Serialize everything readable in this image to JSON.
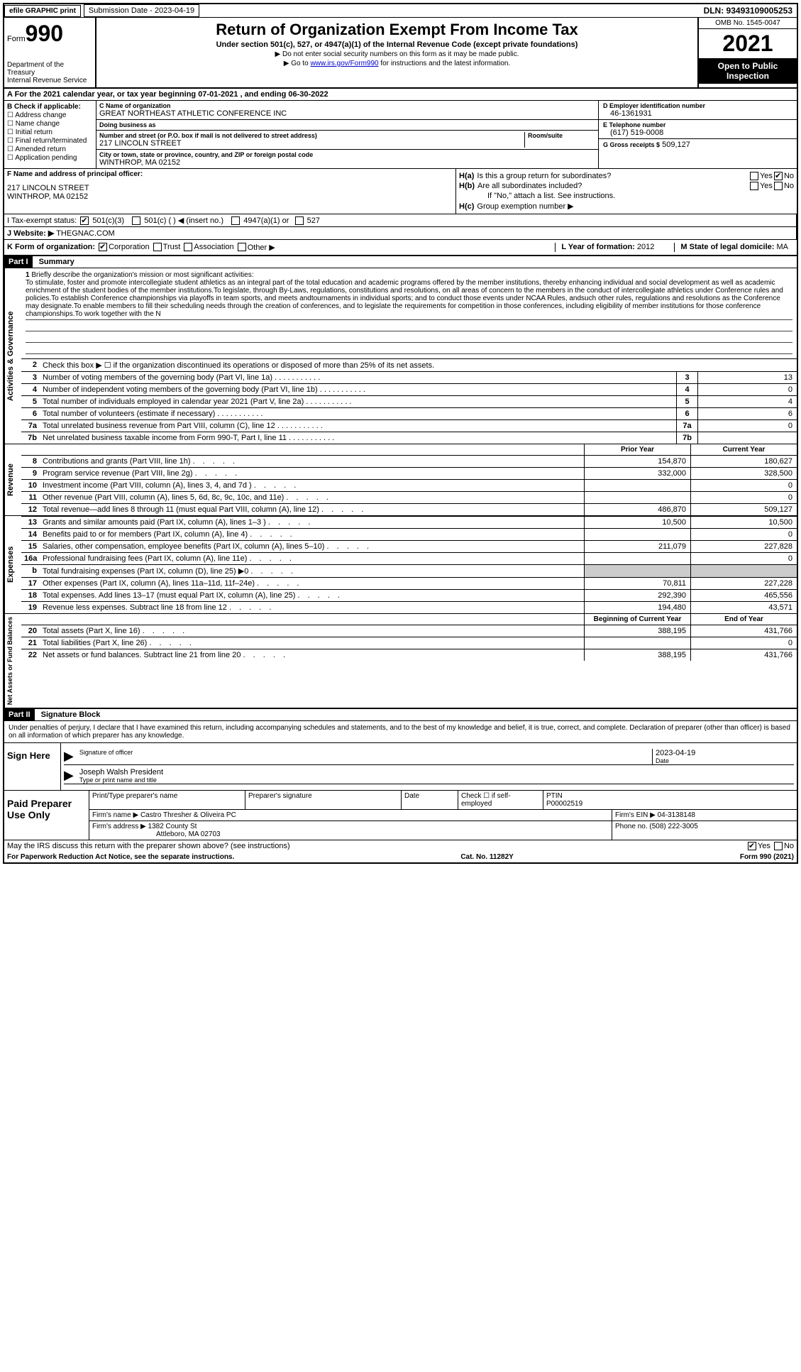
{
  "top": {
    "efile": "efile GRAPHIC print",
    "sub_date_label": "Submission Date - ",
    "sub_date": "2023-04-19",
    "dln": "DLN: 93493109005253"
  },
  "header": {
    "form_word": "Form",
    "form_num": "990",
    "dept": "Department of the Treasury\nInternal Revenue Service",
    "title": "Return of Organization Exempt From Income Tax",
    "subtitle": "Under section 501(c), 527, or 4947(a)(1) of the Internal Revenue Code (except private foundations)",
    "line1": "▶ Do not enter social security numbers on this form as it may be made public.",
    "line2_pre": "▶ Go to ",
    "line2_link": "www.irs.gov/Form990",
    "line2_post": " for instructions and the latest information.",
    "omb": "OMB No. 1545-0047",
    "year": "2021",
    "open": "Open to Public Inspection"
  },
  "rowA": "A For the 2021 calendar year, or tax year beginning 07-01-2021   , and ending 06-30-2022",
  "B": {
    "hdr": "B Check if applicable:",
    "items": [
      "Address change",
      "Name change",
      "Initial return",
      "Final return/terminated",
      "Amended return",
      "Application pending"
    ]
  },
  "C": {
    "name_lbl": "C Name of organization",
    "name": "GREAT NORTHEAST ATHLETIC CONFERENCE INC",
    "dba_lbl": "Doing business as",
    "dba": "",
    "addr_lbl": "Number and street (or P.O. box if mail is not delivered to street address)",
    "room_lbl": "Room/suite",
    "addr": "217 LINCOLN STREET",
    "city_lbl": "City or town, state or province, country, and ZIP or foreign postal code",
    "city": "WINTHROP, MA  02152"
  },
  "D": {
    "lbl": "D Employer identification number",
    "val": "46-1361931"
  },
  "E": {
    "lbl": "E Telephone number",
    "val": "(617) 519-0008"
  },
  "G": {
    "lbl": "G Gross receipts $",
    "val": "509,127"
  },
  "F": {
    "lbl": "F  Name and address of principal officer:",
    "addr1": "217 LINCOLN STREET",
    "addr2": "WINTHROP, MA  02152"
  },
  "H": {
    "a_lbl": "H(a)",
    "a_txt": "Is this a group return for subordinates?",
    "a_yes": "Yes",
    "a_no": "No",
    "b_lbl": "H(b)",
    "b_txt": "Are all subordinates included?",
    "b_note": "If \"No,\" attach a list. See instructions.",
    "c_lbl": "H(c)",
    "c_txt": "Group exemption number ▶"
  },
  "I": {
    "lbl": "I   Tax-exempt status:",
    "opt1": "501(c)(3)",
    "opt2": "501(c) (  ) ◀ (insert no.)",
    "opt3": "4947(a)(1) or",
    "opt4": "527"
  },
  "J": {
    "lbl": "J  Website: ▶",
    "val": "THEGNAC.COM"
  },
  "K": {
    "lbl": "K Form of organization:",
    "opts": [
      "Corporation",
      "Trust",
      "Association",
      "Other ▶"
    ],
    "L_lbl": "L Year of formation:",
    "L_val": "2012",
    "M_lbl": "M State of legal domicile:",
    "M_val": "MA"
  },
  "part1": {
    "hdr": "Part I",
    "title": "Summary",
    "tab_ag": "Activities & Governance",
    "tab_rev": "Revenue",
    "tab_exp": "Expenses",
    "tab_na": "Net Assets or Fund Balances",
    "line1_lbl": "1",
    "line1_txt": "Briefly describe the organization's mission or most significant activities:",
    "mission": "To stimulate, foster and promote intercollegiate student athletics as an integral part of the total education and academic programs offered by the member institutions, thereby enhancing individual and social development as well as academic enrichment of the student bodies of the member institutions.To legislate, through By-Laws, regulations, constitutions and resolutions, on all areas of concern to the members in the conduct of intercollegiate athletics under Conference rules and policies.To establish Conference championships via playoffs in team sports, and meets andtournaments in individual sports; and to conduct those events under NCAA Rules, andsuch other rules, regulations and resolutions as the Conference may designate.To enable members to fill their scheduling needs through the creation of conferences, and to legislate the requirements for competition in those conferences, including eligibility of member institutions for those conference championships.To work together with the N",
    "line2": "Check this box ▶ ☐ if the organization discontinued its operations or disposed of more than 25% of its net assets.",
    "rows_ag": [
      {
        "n": "3",
        "t": "Number of voting members of the governing body (Part VI, line 1a)",
        "v": "13"
      },
      {
        "n": "4",
        "t": "Number of independent voting members of the governing body (Part VI, line 1b)",
        "v": "0"
      },
      {
        "n": "5",
        "t": "Total number of individuals employed in calendar year 2021 (Part V, line 2a)",
        "v": "4"
      },
      {
        "n": "6",
        "t": "Total number of volunteers (estimate if necessary)",
        "v": "6"
      },
      {
        "n": "7a",
        "t": "Total unrelated business revenue from Part VIII, column (C), line 12",
        "v": "0"
      },
      {
        "n": "7b",
        "t": "Net unrelated business taxable income from Form 990-T, Part I, line 11",
        "v": ""
      }
    ],
    "col_hdr1": "Prior Year",
    "col_hdr2": "Current Year",
    "rows_rev": [
      {
        "n": "8",
        "t": "Contributions and grants (Part VIII, line 1h)",
        "c1": "154,870",
        "c2": "180,627"
      },
      {
        "n": "9",
        "t": "Program service revenue (Part VIII, line 2g)",
        "c1": "332,000",
        "c2": "328,500"
      },
      {
        "n": "10",
        "t": "Investment income (Part VIII, column (A), lines 3, 4, and 7d )",
        "c1": "",
        "c2": "0"
      },
      {
        "n": "11",
        "t": "Other revenue (Part VIII, column (A), lines 5, 6d, 8c, 9c, 10c, and 11e)",
        "c1": "",
        "c2": "0"
      },
      {
        "n": "12",
        "t": "Total revenue—add lines 8 through 11 (must equal Part VIII, column (A), line 12)",
        "c1": "486,870",
        "c2": "509,127"
      }
    ],
    "rows_exp": [
      {
        "n": "13",
        "t": "Grants and similar amounts paid (Part IX, column (A), lines 1–3 )",
        "c1": "10,500",
        "c2": "10,500"
      },
      {
        "n": "14",
        "t": "Benefits paid to or for members (Part IX, column (A), line 4)",
        "c1": "",
        "c2": "0"
      },
      {
        "n": "15",
        "t": "Salaries, other compensation, employee benefits (Part IX, column (A), lines 5–10)",
        "c1": "211,079",
        "c2": "227,828"
      },
      {
        "n": "16a",
        "t": "Professional fundraising fees (Part IX, column (A), line 11e)",
        "c1": "",
        "c2": "0"
      },
      {
        "n": "b",
        "t": "Total fundraising expenses (Part IX, column (D), line 25) ▶0",
        "c1": "SHADE",
        "c2": "SHADE"
      },
      {
        "n": "17",
        "t": "Other expenses (Part IX, column (A), lines 11a–11d, 11f–24e)",
        "c1": "70,811",
        "c2": "227,228"
      },
      {
        "n": "18",
        "t": "Total expenses. Add lines 13–17 (must equal Part IX, column (A), line 25)",
        "c1": "292,390",
        "c2": "465,556"
      },
      {
        "n": "19",
        "t": "Revenue less expenses. Subtract line 18 from line 12",
        "c1": "194,480",
        "c2": "43,571"
      }
    ],
    "na_hdr1": "Beginning of Current Year",
    "na_hdr2": "End of Year",
    "rows_na": [
      {
        "n": "20",
        "t": "Total assets (Part X, line 16)",
        "c1": "388,195",
        "c2": "431,766"
      },
      {
        "n": "21",
        "t": "Total liabilities (Part X, line 26)",
        "c1": "",
        "c2": "0"
      },
      {
        "n": "22",
        "t": "Net assets or fund balances. Subtract line 21 from line 20",
        "c1": "388,195",
        "c2": "431,766"
      }
    ]
  },
  "part2": {
    "hdr": "Part II",
    "title": "Signature Block",
    "perjury": "Under penalties of perjury, I declare that I have examined this return, including accompanying schedules and statements, and to the best of my knowledge and belief, it is true, correct, and complete. Declaration of preparer (other than officer) is based on all information of which preparer has any knowledge.",
    "sign_here": "Sign Here",
    "sig_officer_lbl": "Signature of officer",
    "sig_date_lbl": "Date",
    "sig_date": "2023-04-19",
    "sig_name": "Joseph Walsh  President",
    "sig_name_lbl": "Type or print name and title",
    "paid": "Paid Preparer Use Only",
    "prep_hdrs": [
      "Print/Type preparer's name",
      "Preparer's signature",
      "Date",
      "Check ☐ if self-employed",
      "PTIN"
    ],
    "ptin": "P00002519",
    "firm_name_lbl": "Firm's name    ▶",
    "firm_name": "Castro Thresher & Oliveira PC",
    "firm_ein_lbl": "Firm's EIN ▶",
    "firm_ein": "04-3138148",
    "firm_addr_lbl": "Firm's address ▶",
    "firm_addr1": "1382 County St",
    "firm_addr2": "Attleboro, MA  02703",
    "firm_phone_lbl": "Phone no.",
    "firm_phone": "(508) 222-3005",
    "discuss": "May the IRS discuss this return with the preparer shown above? (see instructions)",
    "yes": "Yes",
    "no": "No"
  },
  "footer": {
    "pra": "For Paperwork Reduction Act Notice, see the separate instructions.",
    "cat": "Cat. No. 11282Y",
    "form": "Form 990 (2021)"
  }
}
